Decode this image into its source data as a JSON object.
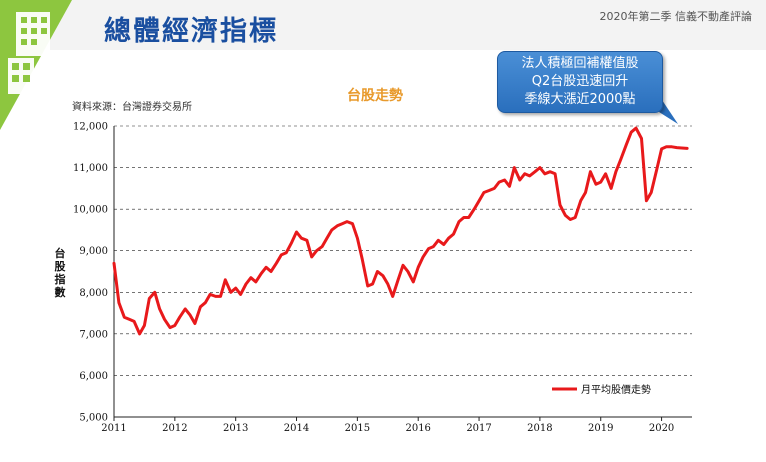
{
  "header": {
    "title": "總體經濟指標",
    "note": "2020年第二季  信義不動產評論"
  },
  "icons": {
    "logo": "building-logo-icon"
  },
  "colors": {
    "line": "#e8191b",
    "title": "#1a4fa0",
    "chart_title": "#e89a2c",
    "callout": "#2f78c6"
  },
  "callout": {
    "lines": [
      "法人積極回補權值股",
      "Q2台股迅速回升",
      "季線大漲近2000點"
    ]
  },
  "chart_data": {
    "type": "line",
    "title": "台股走勢",
    "source": "資料來源：台灣證券交易所",
    "ylabel": "台股指數",
    "ylabel_chars": [
      "台",
      "股",
      "指",
      "數"
    ],
    "xlabel": "",
    "ylim": [
      5000,
      12000
    ],
    "xlim": [
      2011.0,
      2020.5
    ],
    "yticks": [
      "5,000",
      "6,000",
      "7,000",
      "8,000",
      "9,000",
      "10,000",
      "11,000",
      "12,000"
    ],
    "xticks": [
      "2011",
      "2012",
      "2013",
      "2014",
      "2015",
      "2016",
      "2017",
      "2018",
      "2019",
      "2020"
    ],
    "legend": {
      "position": "bottom-right",
      "label": "月平均股價走勢"
    },
    "series": [
      {
        "name": "月平均股價走勢",
        "x": [
          2011.0,
          2011.08,
          2011.17,
          2011.25,
          2011.33,
          2011.42,
          2011.5,
          2011.58,
          2011.67,
          2011.75,
          2011.83,
          2011.92,
          2012.0,
          2012.08,
          2012.17,
          2012.25,
          2012.33,
          2012.42,
          2012.5,
          2012.58,
          2012.67,
          2012.75,
          2012.83,
          2012.92,
          2013.0,
          2013.08,
          2013.17,
          2013.25,
          2013.33,
          2013.42,
          2013.5,
          2013.58,
          2013.67,
          2013.75,
          2013.83,
          2013.92,
          2014.0,
          2014.08,
          2014.17,
          2014.25,
          2014.33,
          2014.42,
          2014.5,
          2014.58,
          2014.67,
          2014.75,
          2014.83,
          2014.92,
          2015.0,
          2015.08,
          2015.17,
          2015.25,
          2015.33,
          2015.42,
          2015.5,
          2015.58,
          2015.67,
          2015.75,
          2015.83,
          2015.92,
          2016.0,
          2016.08,
          2016.17,
          2016.25,
          2016.33,
          2016.42,
          2016.5,
          2016.58,
          2016.67,
          2016.75,
          2016.83,
          2016.92,
          2017.0,
          2017.08,
          2017.17,
          2017.25,
          2017.33,
          2017.42,
          2017.5,
          2017.58,
          2017.67,
          2017.75,
          2017.83,
          2017.92,
          2018.0,
          2018.08,
          2018.17,
          2018.25,
          2018.33,
          2018.42,
          2018.5,
          2018.58,
          2018.67,
          2018.75,
          2018.83,
          2018.92,
          2019.0,
          2019.08,
          2019.17,
          2019.25,
          2019.33,
          2019.42,
          2019.5,
          2019.58,
          2019.67,
          2019.75,
          2019.83,
          2019.92,
          2020.0,
          2020.08,
          2020.17,
          2020.25,
          2020.33,
          2020.42
        ],
        "values": [
          8700,
          7750,
          7400,
          7350,
          7300,
          7000,
          7200,
          7850,
          8000,
          7600,
          7350,
          7150,
          7200,
          7400,
          7600,
          7450,
          7250,
          7650,
          7750,
          7950,
          7900,
          7900,
          8300,
          8000,
          8100,
          7950,
          8200,
          8350,
          8250,
          8450,
          8600,
          8500,
          8700,
          8900,
          8950,
          9200,
          9450,
          9300,
          9250,
          8850,
          9000,
          9100,
          9300,
          9500,
          9600,
          9650,
          9700,
          9650,
          9300,
          8800,
          8150,
          8200,
          8500,
          8400,
          8200,
          7900,
          8300,
          8650,
          8500,
          8250,
          8600,
          8850,
          9050,
          9100,
          9250,
          9150,
          9300,
          9400,
          9700,
          9800,
          9800,
          10000,
          10200,
          10400,
          10450,
          10500,
          10650,
          10700,
          10550,
          11000,
          10700,
          10850,
          10800,
          10900,
          11000,
          10850,
          10900,
          10850,
          10100,
          9850,
          9750,
          9800,
          10200,
          10400,
          10900,
          10600,
          10650,
          10850,
          10500,
          10900,
          11200,
          11550,
          11850,
          11950,
          11700,
          10200,
          10400,
          10950,
          11450,
          11500,
          11500,
          11480,
          11470,
          11460
        ]
      }
    ]
  }
}
